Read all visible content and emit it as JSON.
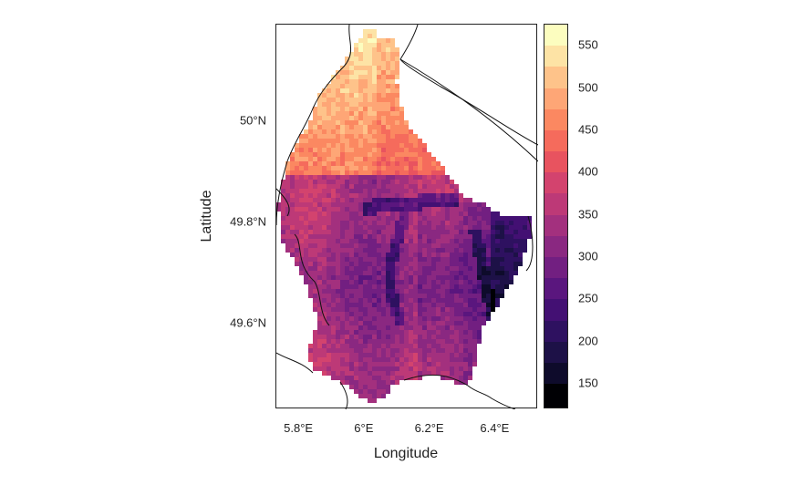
{
  "map": {
    "region": "Luxembourg",
    "variable_scale": "elevation-style raster (values ~120–575)",
    "xlabel": "Longitude",
    "ylabel": "Latitude",
    "x_ticks": [
      "5.8°E",
      "6°E",
      "6.2°E",
      "6.4°E"
    ],
    "x_tick_values": [
      5.8,
      6.0,
      6.2,
      6.4
    ],
    "y_ticks": [
      "50°N",
      "49.8°N",
      "49.6°N"
    ],
    "y_tick_values": [
      50.0,
      49.8,
      49.6
    ],
    "xlim": [
      5.73,
      6.53
    ],
    "ylim": [
      49.43,
      50.19
    ]
  },
  "legend": {
    "labels": [
      "550",
      "500",
      "450",
      "400",
      "350",
      "300",
      "250",
      "200",
      "150"
    ],
    "label_values": [
      550,
      500,
      450,
      400,
      350,
      300,
      250,
      200,
      150
    ],
    "bins": [
      {
        "from": 550,
        "to": 575,
        "color": "#fcfdbf"
      },
      {
        "from": 525,
        "to": 550,
        "color": "#fde3a5"
      },
      {
        "from": 500,
        "to": 525,
        "color": "#fec38a"
      },
      {
        "from": 475,
        "to": 500,
        "color": "#fea676"
      },
      {
        "from": 450,
        "to": 475,
        "color": "#fb8861"
      },
      {
        "from": 425,
        "to": 450,
        "color": "#f56b5c"
      },
      {
        "from": 400,
        "to": 425,
        "color": "#e8535f"
      },
      {
        "from": 375,
        "to": 400,
        "color": "#d3436e"
      },
      {
        "from": 350,
        "to": 375,
        "color": "#bd3977"
      },
      {
        "from": 325,
        "to": 350,
        "color": "#a3307e"
      },
      {
        "from": 300,
        "to": 325,
        "color": "#8a2881"
      },
      {
        "from": 275,
        "to": 300,
        "color": "#721f81"
      },
      {
        "from": 250,
        "to": 275,
        "color": "#5a167e"
      },
      {
        "from": 225,
        "to": 250,
        "color": "#431073"
      },
      {
        "from": 200,
        "to": 225,
        "color": "#2e1160"
      },
      {
        "from": 175,
        "to": 200,
        "color": "#1d1147"
      },
      {
        "from": 150,
        "to": 175,
        "color": "#0e0b2b"
      },
      {
        "from": 120,
        "to": 150,
        "color": "#000004"
      }
    ]
  }
}
